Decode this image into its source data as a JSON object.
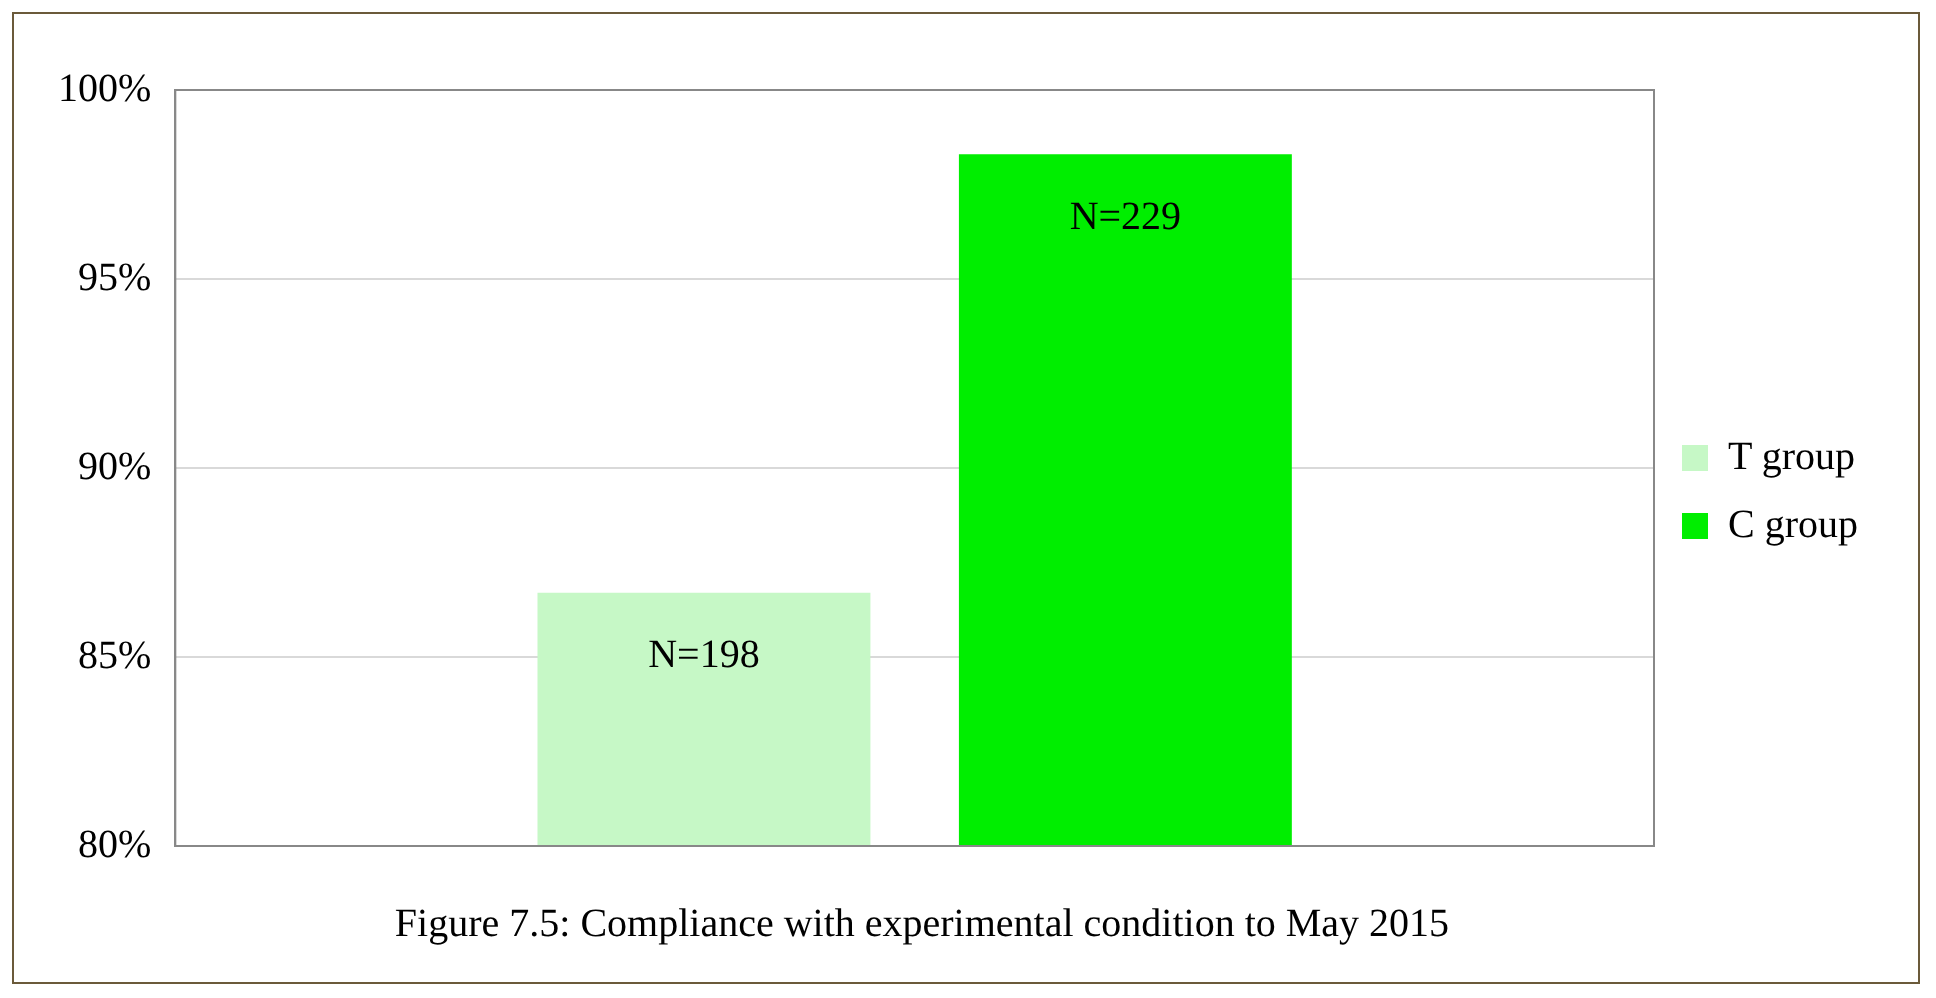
{
  "chart_data": {
    "type": "bar",
    "title": "Figure 7.5: Compliance with experimental condition to May 2015",
    "categories": [
      null
    ],
    "series": [
      {
        "name": "T group",
        "color": "#c6f8c6",
        "values": [
          86.7
        ]
      },
      {
        "name": "C group",
        "color": "#00ee00",
        "values": [
          98.3
        ]
      }
    ],
    "annotations": [
      "N=198",
      "N=229"
    ],
    "ylim": [
      80,
      100
    ],
    "yticks": [
      {
        "value": 80,
        "label": "80%"
      },
      {
        "value": 85,
        "label": "85%"
      },
      {
        "value": 90,
        "label": "90%"
      },
      {
        "value": 95,
        "label": "95%"
      },
      {
        "value": 100,
        "label": "100%"
      }
    ],
    "grid": "y",
    "legend": "right"
  }
}
